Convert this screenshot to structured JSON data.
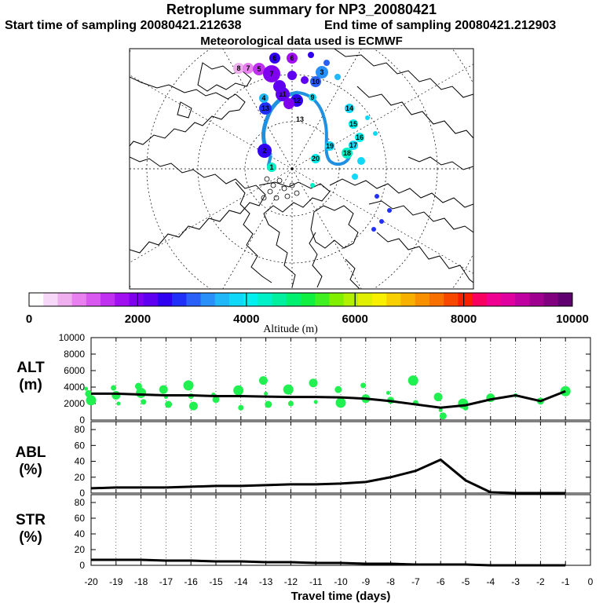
{
  "header": {
    "title": "Retroplume summary for NP3_20080421",
    "start_time": "Start time of sampling 20080421.212638",
    "end_time": "End time of sampling 20080421.212903",
    "met_data": "Meteorological data used is ECMWF"
  },
  "colorbar": {
    "label": "Altitude (m)",
    "ticks": [
      "0",
      "2000",
      "4000",
      "6000",
      "8000",
      "10000"
    ],
    "colors": [
      "#fff",
      "#f8d8f8",
      "#f0b0f0",
      "#e880f0",
      "#d858f0",
      "#c030f0",
      "#a010f0",
      "#8000f0",
      "#6000f0",
      "#3000f0",
      "#2030f8",
      "#2860f8",
      "#2890f8",
      "#20b8f8",
      "#10d8f8",
      "#00f0f0",
      "#00f0c8",
      "#00f0a0",
      "#00f070",
      "#10f040",
      "#40f020",
      "#80f000",
      "#b0f000",
      "#e0f000",
      "#f8f000",
      "#f8d000",
      "#f8b000",
      "#f89000",
      "#f87000",
      "#f84800",
      "#f82000",
      "#f80060",
      "#f00090",
      "#e000a0",
      "#c000a0",
      "#a00090",
      "#800080",
      "#600070"
    ]
  },
  "map": {
    "track_color": "#2090e0",
    "labels": [
      {
        "n": "8",
        "c": "#f0b0f0"
      },
      {
        "n": "7",
        "c": "#e880f0"
      },
      {
        "n": "5",
        "c": "#c030f0"
      },
      {
        "n": "7",
        "c": "#8000f0"
      },
      {
        "n": "6",
        "c": "#a010f0"
      },
      {
        "n": "6",
        "c": "#3000f0"
      },
      {
        "n": "3",
        "c": "#2890f8"
      },
      {
        "n": "10",
        "c": "#2860f8"
      },
      {
        "n": "11",
        "c": "#6000f0"
      },
      {
        "n": "12",
        "c": "#3000f0"
      },
      {
        "n": "13",
        "c": "#2030f8"
      },
      {
        "n": "14",
        "c": "#10d8f8"
      },
      {
        "n": "15",
        "c": "#00f0f0"
      },
      {
        "n": "16",
        "c": "#00f0f0"
      },
      {
        "n": "17",
        "c": "#10d8f8"
      },
      {
        "n": "18",
        "c": "#00f0c8"
      },
      {
        "n": "19",
        "c": "#10d8f8"
      },
      {
        "n": "20",
        "c": "#00f0f0"
      },
      {
        "n": "2",
        "c": "#3000f0"
      },
      {
        "n": "1",
        "c": "#00f0c8"
      },
      {
        "n": "4",
        "c": "#20b8f8"
      },
      {
        "n": "9",
        "c": "#10d8f8"
      },
      {
        "n": "13",
        "c": "#fff"
      }
    ]
  },
  "chart_data": [
    {
      "type": "scatter+line",
      "panel_label": [
        "ALT",
        "(m)"
      ],
      "ylabel": "Altitude (m)",
      "ylim": [
        0,
        10000
      ],
      "yticks": [
        "0",
        "2000",
        "4000",
        "6000",
        "8000",
        "10000"
      ],
      "x": [
        -20,
        -19,
        -18,
        -17,
        -16,
        -15,
        -14,
        -13,
        -12,
        -11,
        -10,
        -9,
        -8,
        -7,
        -6,
        -5,
        -4,
        -3,
        -2,
        -1
      ],
      "median_line": [
        3200,
        3200,
        3100,
        3000,
        3000,
        2900,
        2900,
        2850,
        2800,
        2800,
        2750,
        2600,
        2300,
        1900,
        1500,
        1800,
        2500,
        3000,
        2300,
        3500
      ],
      "scatter_points": [
        [
          -20.2,
          3800
        ],
        [
          -20.1,
          3200
        ],
        [
          -20.0,
          2400
        ],
        [
          -19.1,
          3900
        ],
        [
          -19.0,
          3000
        ],
        [
          -18.9,
          2000
        ],
        [
          -18.1,
          4100
        ],
        [
          -18.0,
          3300
        ],
        [
          -17.9,
          2200
        ],
        [
          -17.1,
          3700
        ],
        [
          -17.0,
          2800
        ],
        [
          -16.9,
          1900
        ],
        [
          -16.1,
          4200
        ],
        [
          -16.0,
          2900
        ],
        [
          -15.9,
          1700
        ],
        [
          -15.1,
          3100
        ],
        [
          -15.0,
          2500
        ],
        [
          -14.1,
          3600
        ],
        [
          -14.0,
          1500
        ],
        [
          -13.1,
          4800
        ],
        [
          -13.0,
          3200
        ],
        [
          -12.9,
          1900
        ],
        [
          -12.1,
          3700
        ],
        [
          -12.0,
          2000
        ],
        [
          -11.1,
          4500
        ],
        [
          -11.0,
          2200
        ],
        [
          -10.1,
          3700
        ],
        [
          -10.0,
          2100
        ],
        [
          -9.1,
          4200
        ],
        [
          -9.0,
          2600
        ],
        [
          -8.1,
          3300
        ],
        [
          -8.0,
          2400
        ],
        [
          -7.1,
          4800
        ],
        [
          -7.0,
          2100
        ],
        [
          -6.1,
          2800
        ],
        [
          -6.0,
          1200
        ],
        [
          -5.9,
          500
        ],
        [
          -5.1,
          2000
        ],
        [
          -5.0,
          1500
        ],
        [
          -4.0,
          2700
        ],
        [
          -3.0,
          3000
        ],
        [
          -2.0,
          2300
        ],
        [
          -1.0,
          3500
        ]
      ]
    },
    {
      "type": "line",
      "panel_label": [
        "ABL",
        "(%)"
      ],
      "ylabel": "ABL (%)",
      "ylim": [
        0,
        90
      ],
      "yticks": [
        "0",
        "20",
        "40",
        "60",
        "80"
      ],
      "x": [
        -20,
        -19,
        -18,
        -17,
        -16,
        -15,
        -14,
        -13,
        -12,
        -11,
        -10,
        -9,
        -8,
        -7,
        -6,
        -5,
        -4,
        -3,
        -2,
        -1
      ],
      "values": [
        6,
        7,
        7,
        7,
        8,
        9,
        9,
        10,
        11,
        11,
        12,
        14,
        20,
        28,
        42,
        16,
        1,
        0,
        0,
        0
      ]
    },
    {
      "type": "line",
      "panel_label": [
        "STR",
        "(%)"
      ],
      "ylabel": "STR (%)",
      "ylim": [
        0,
        90
      ],
      "yticks": [
        "0",
        "20",
        "40",
        "60",
        "80"
      ],
      "x": [
        -20,
        -19,
        -18,
        -17,
        -16,
        -15,
        -14,
        -13,
        -12,
        -11,
        -10,
        -9,
        -8,
        -7,
        -6,
        -5,
        -4,
        -3,
        -2,
        -1
      ],
      "values": [
        7,
        7,
        7,
        6,
        6,
        5,
        5,
        4,
        4,
        3,
        3,
        2,
        2,
        1,
        1,
        1,
        0,
        0,
        0,
        0
      ]
    }
  ],
  "xaxis": {
    "label": "Travel time (days)",
    "ticks": [
      "-20",
      "-19",
      "-18",
      "-17",
      "-16",
      "-15",
      "-14",
      "-13",
      "-12",
      "-11",
      "-10",
      "-9",
      "-8",
      "-7",
      "-6",
      "-5",
      "-4",
      "-3",
      "-2",
      "-1",
      "0"
    ]
  }
}
